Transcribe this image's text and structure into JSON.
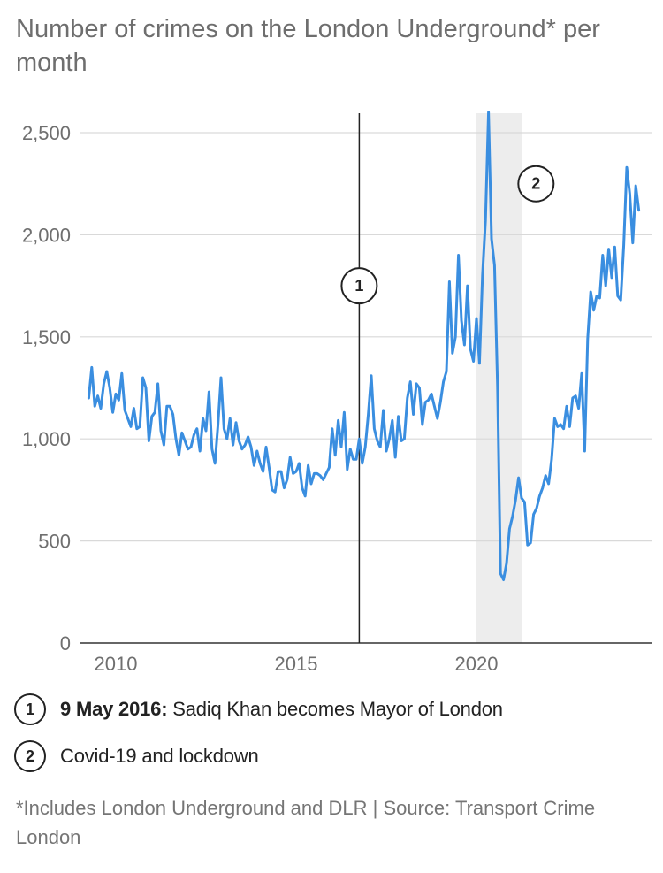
{
  "title": "Number of crimes on the London Underground* per month",
  "chart_data": {
    "type": "line",
    "title": "Number of crimes on the London Underground* per month",
    "xlabel": "",
    "ylabel": "",
    "xlim": [
      2009,
      2024.6
    ],
    "ylim": [
      0,
      2600
    ],
    "yticks": [
      0,
      500,
      1000,
      1500,
      2000,
      2500
    ],
    "ytick_labels": [
      "0",
      "500",
      "1,000",
      "1,500",
      "2,000",
      "2,500"
    ],
    "xticks": [
      2010,
      2015,
      2020
    ],
    "xtick_labels": [
      "2010",
      "2015",
      "2020"
    ],
    "grid": true,
    "line_color": "#3a8ee0",
    "series": [
      {
        "name": "Crimes per month",
        "start_year": 2009.25,
        "step": 0.0833333,
        "values": [
          1200,
          1350,
          1160,
          1210,
          1150,
          1270,
          1330,
          1250,
          1130,
          1220,
          1190,
          1320,
          1140,
          1100,
          1060,
          1150,
          1050,
          1060,
          1300,
          1250,
          990,
          1110,
          1130,
          1270,
          1040,
          970,
          1160,
          1160,
          1120,
          1000,
          920,
          1030,
          990,
          950,
          960,
          1020,
          1050,
          940,
          1100,
          1040,
          1230,
          950,
          880,
          1070,
          1300,
          1050,
          1000,
          1100,
          970,
          1080,
          990,
          950,
          970,
          1010,
          960,
          870,
          940,
          880,
          840,
          960,
          860,
          750,
          740,
          840,
          840,
          760,
          800,
          910,
          830,
          840,
          880,
          760,
          720,
          870,
          780,
          830,
          830,
          820,
          800,
          830,
          860,
          1050,
          920,
          1090,
          960,
          1130,
          850,
          950,
          900,
          900,
          1000,
          880,
          960,
          1120,
          1310,
          1050,
          990,
          960,
          1140,
          940,
          1000,
          1090,
          910,
          1110,
          990,
          1000,
          1200,
          1280,
          1120,
          1270,
          1250,
          1070,
          1180,
          1190,
          1220,
          1160,
          1100,
          1180,
          1280,
          1330,
          1770,
          1420,
          1500,
          1900,
          1580,
          1460,
          1750,
          1440,
          1380,
          1590,
          1370,
          1800,
          2070,
          2600,
          1980,
          1850,
          1260,
          340,
          310,
          390,
          560,
          620,
          700,
          810,
          710,
          690,
          480,
          490,
          630,
          660,
          720,
          760,
          820,
          780,
          900,
          1100,
          1060,
          1070,
          1050,
          1160,
          1060,
          1200,
          1210,
          1150,
          1320,
          940,
          1490,
          1720,
          1630,
          1700,
          1690,
          1900,
          1750,
          1930,
          1790,
          1940,
          1700,
          1680,
          1950,
          2330,
          2200,
          1960,
          2240,
          2120
        ]
      }
    ],
    "annotations": [
      {
        "number": "1",
        "x": 2016.75,
        "type": "vertical-line",
        "label_date": "9 May 2016:",
        "label_text": " Sadiq Khan becomes Mayor of London"
      },
      {
        "number": "2",
        "x_range": [
          2020.0,
          2021.25
        ],
        "type": "shaded-band",
        "label_text": "Covid-19 and lockdown"
      }
    ]
  },
  "notes": {
    "note1": {
      "badge": "1",
      "bold": "9 May 2016:",
      "text": " Sadiq Khan becomes Mayor of London"
    },
    "note2": {
      "badge": "2",
      "text": "Covid-19 and lockdown"
    }
  },
  "footnote": "*Includes London Underground and DLR | Source: Transport Crime London"
}
